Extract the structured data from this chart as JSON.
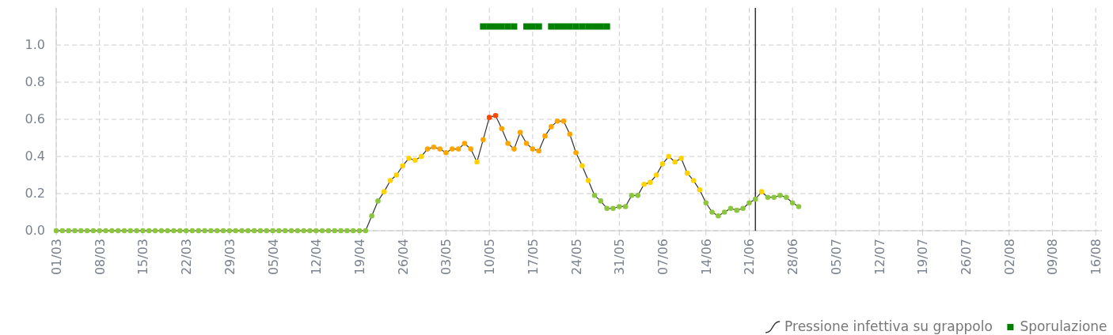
{
  "chart_data": {
    "type": "line",
    "xlim": [
      "--03-01",
      "--08-17"
    ],
    "ylim": [
      0,
      1.2
    ],
    "xticks": [
      {
        "value": "--03-01",
        "label": "01/03"
      },
      {
        "value": "--03-08",
        "label": "08/03"
      },
      {
        "value": "--03-15",
        "label": "15/03"
      },
      {
        "value": "--03-22",
        "label": "22/03"
      },
      {
        "value": "--03-29",
        "label": "29/03"
      },
      {
        "value": "--04-05",
        "label": "05/04"
      },
      {
        "value": "--04-12",
        "label": "12/04"
      },
      {
        "value": "--04-19",
        "label": "19/04"
      },
      {
        "value": "--04-26",
        "label": "26/04"
      },
      {
        "value": "--05-03",
        "label": "03/05"
      },
      {
        "value": "--05-10",
        "label": "10/05"
      },
      {
        "value": "--05-17",
        "label": "17/05"
      },
      {
        "value": "--05-24",
        "label": "24/05"
      },
      {
        "value": "--05-31",
        "label": "31/05"
      },
      {
        "value": "--06-07",
        "label": "07/06"
      },
      {
        "value": "--06-14",
        "label": "14/06"
      },
      {
        "value": "--06-21",
        "label": "21/06"
      },
      {
        "value": "--06-28",
        "label": "28/06"
      },
      {
        "value": "--07-05",
        "label": "05/07"
      },
      {
        "value": "--07-12",
        "label": "12/07"
      },
      {
        "value": "--07-19",
        "label": "19/07"
      },
      {
        "value": "--07-26",
        "label": "26/07"
      },
      {
        "value": "--08-02",
        "label": "02/08"
      },
      {
        "value": "--08-09",
        "label": "09/08"
      },
      {
        "value": "--08-16",
        "label": "16/08"
      }
    ],
    "yticks": [
      {
        "value": 0,
        "label": "0.0"
      },
      {
        "value": 0.2,
        "label": "0.2"
      },
      {
        "value": 0.4,
        "label": "0.4"
      },
      {
        "value": 0.6,
        "label": "0.6"
      },
      {
        "value": 0.8,
        "label": "0.8"
      },
      {
        "value": 1,
        "label": "1.0"
      }
    ],
    "grid": true,
    "legend": "bottom right",
    "marker": "circle",
    "line_style": "solid",
    "ref_lines": [
      {
        "axis": "x",
        "value": "--06-22",
        "color": "#333333"
      }
    ],
    "series": [
      {
        "name": "Pressione infettiva su grappolo",
        "color": "#333333",
        "x": [
          "--03-01",
          "--03-02",
          "--03-03",
          "--03-04",
          "--03-05",
          "--03-06",
          "--03-07",
          "--03-08",
          "--03-09",
          "--03-10",
          "--03-11",
          "--03-12",
          "--03-13",
          "--03-14",
          "--03-15",
          "--03-16",
          "--03-17",
          "--03-18",
          "--03-19",
          "--03-20",
          "--03-21",
          "--03-22",
          "--03-23",
          "--03-24",
          "--03-25",
          "--03-26",
          "--03-27",
          "--03-28",
          "--03-29",
          "--03-30",
          "--03-31",
          "--04-01",
          "--04-02",
          "--04-03",
          "--04-04",
          "--04-05",
          "--04-06",
          "--04-07",
          "--04-08",
          "--04-09",
          "--04-10",
          "--04-11",
          "--04-12",
          "--04-13",
          "--04-14",
          "--04-15",
          "--04-16",
          "--04-17",
          "--04-18",
          "--04-19",
          "--04-20",
          "--04-21",
          "--04-22",
          "--04-23",
          "--04-24",
          "--04-25",
          "--04-26",
          "--04-27",
          "--04-28",
          "--04-29",
          "--04-30",
          "--05-01",
          "--05-02",
          "--05-03",
          "--05-04",
          "--05-05",
          "--05-06",
          "--05-07",
          "--05-08",
          "--05-09",
          "--05-10",
          "--05-11",
          "--05-12",
          "--05-13",
          "--05-14",
          "--05-15",
          "--05-16",
          "--05-17",
          "--05-18",
          "--05-19",
          "--05-20",
          "--05-21",
          "--05-22",
          "--05-23",
          "--05-24",
          "--05-25",
          "--05-26",
          "--05-27",
          "--05-28",
          "--05-29",
          "--05-30",
          "--05-31",
          "--06-01",
          "--06-02",
          "--06-03",
          "--06-04",
          "--06-05",
          "--06-06",
          "--06-07",
          "--06-08",
          "--06-09",
          "--06-10",
          "--06-11",
          "--06-12",
          "--06-13",
          "--06-14",
          "--06-15",
          "--06-16",
          "--06-17",
          "--06-18",
          "--06-19",
          "--06-20",
          "--06-21",
          "--06-22",
          "--06-23",
          "--06-24",
          "--06-25",
          "--06-26",
          "--06-27",
          "--06-28",
          "--06-29"
        ],
        "values": [
          0,
          0,
          0,
          0,
          0,
          0,
          0,
          0,
          0,
          0,
          0,
          0,
          0,
          0,
          0,
          0,
          0,
          0,
          0,
          0,
          0,
          0,
          0,
          0,
          0,
          0,
          0,
          0,
          0,
          0,
          0,
          0,
          0,
          0,
          0,
          0,
          0,
          0,
          0,
          0,
          0,
          0,
          0,
          0,
          0,
          0,
          0,
          0,
          0,
          0,
          0,
          0.08,
          0.16,
          0.21,
          0.27,
          0.3,
          0.35,
          0.39,
          0.38,
          0.4,
          0.44,
          0.45,
          0.44,
          0.42,
          0.44,
          0.44,
          0.47,
          0.44,
          0.37,
          0.49,
          0.61,
          0.62,
          0.55,
          0.47,
          0.44,
          0.53,
          0.47,
          0.44,
          0.43,
          0.51,
          0.56,
          0.59,
          0.59,
          0.52,
          0.42,
          0.35,
          0.27,
          0.19,
          0.16,
          0.12,
          0.12,
          0.13,
          0.13,
          0.19,
          0.19,
          0.25,
          0.26,
          0.3,
          0.36,
          0.4,
          0.37,
          0.39,
          0.31,
          0.27,
          0.22,
          0.15,
          0.1,
          0.08,
          0.1,
          0.12,
          0.11,
          0.12,
          0.15,
          0.17,
          0.21,
          0.18,
          0.18,
          0.19,
          0.18,
          0.15,
          0.13
        ],
        "colors": [
          "#8cc63f",
          "#8cc63f",
          "#8cc63f",
          "#8cc63f",
          "#8cc63f",
          "#8cc63f",
          "#8cc63f",
          "#8cc63f",
          "#8cc63f",
          "#8cc63f",
          "#8cc63f",
          "#8cc63f",
          "#8cc63f",
          "#8cc63f",
          "#8cc63f",
          "#8cc63f",
          "#8cc63f",
          "#8cc63f",
          "#8cc63f",
          "#8cc63f",
          "#8cc63f",
          "#8cc63f",
          "#8cc63f",
          "#8cc63f",
          "#8cc63f",
          "#8cc63f",
          "#8cc63f",
          "#8cc63f",
          "#8cc63f",
          "#8cc63f",
          "#8cc63f",
          "#8cc63f",
          "#8cc63f",
          "#8cc63f",
          "#8cc63f",
          "#8cc63f",
          "#8cc63f",
          "#8cc63f",
          "#8cc63f",
          "#8cc63f",
          "#8cc63f",
          "#8cc63f",
          "#8cc63f",
          "#8cc63f",
          "#8cc63f",
          "#8cc63f",
          "#8cc63f",
          "#8cc63f",
          "#8cc63f",
          "#8cc63f",
          "#8cc63f",
          "#8cc63f",
          "#8cc63f",
          "#ffd200",
          "#ffd200",
          "#ffd200",
          "#ffd200",
          "#ffd200",
          "#ffd200",
          "#ffd200",
          "#ffa500",
          "#ffa500",
          "#ffa500",
          "#ffa500",
          "#ffa500",
          "#ffa500",
          "#ffa500",
          "#ffa500",
          "#ffd200",
          "#ffa500",
          "#ff4500",
          "#ff4500",
          "#ffa500",
          "#ffa500",
          "#ffa500",
          "#ffa500",
          "#ffa500",
          "#ffa500",
          "#ffa500",
          "#ffa500",
          "#ffa500",
          "#ffa500",
          "#ffa500",
          "#ffa500",
          "#ffa500",
          "#ffd200",
          "#ffd200",
          "#8cc63f",
          "#8cc63f",
          "#8cc63f",
          "#8cc63f",
          "#8cc63f",
          "#8cc63f",
          "#8cc63f",
          "#8cc63f",
          "#ffd200",
          "#ffd200",
          "#ffd200",
          "#ffd200",
          "#ffd200",
          "#ffd200",
          "#ffd200",
          "#ffd200",
          "#ffd200",
          "#ffd200",
          "#8cc63f",
          "#8cc63f",
          "#8cc63f",
          "#8cc63f",
          "#8cc63f",
          "#8cc63f",
          "#8cc63f",
          "#8cc63f",
          "#8cc63f",
          "#ffd200",
          "#8cc63f",
          "#8cc63f",
          "#8cc63f",
          "#8cc63f",
          "#8cc63f",
          "#8cc63f"
        ]
      },
      {
        "name": "Sporulazione",
        "type": "scatter",
        "marker": "square",
        "color": "#008000",
        "x": [
          "--05-09",
          "--05-10",
          "--05-11",
          "--05-12",
          "--05-13",
          "--05-14",
          "--05-16",
          "--05-17",
          "--05-18",
          "--05-20",
          "--05-21",
          "--05-22",
          "--05-23",
          "--05-24",
          "--05-25",
          "--05-26",
          "--05-27",
          "--05-28",
          "--05-29"
        ],
        "values": [
          1.1,
          1.1,
          1.1,
          1.1,
          1.1,
          1.1,
          1.1,
          1.1,
          1.1,
          1.1,
          1.1,
          1.1,
          1.1,
          1.1,
          1.1,
          1.1,
          1.1,
          1.1,
          1.1
        ]
      }
    ]
  }
}
